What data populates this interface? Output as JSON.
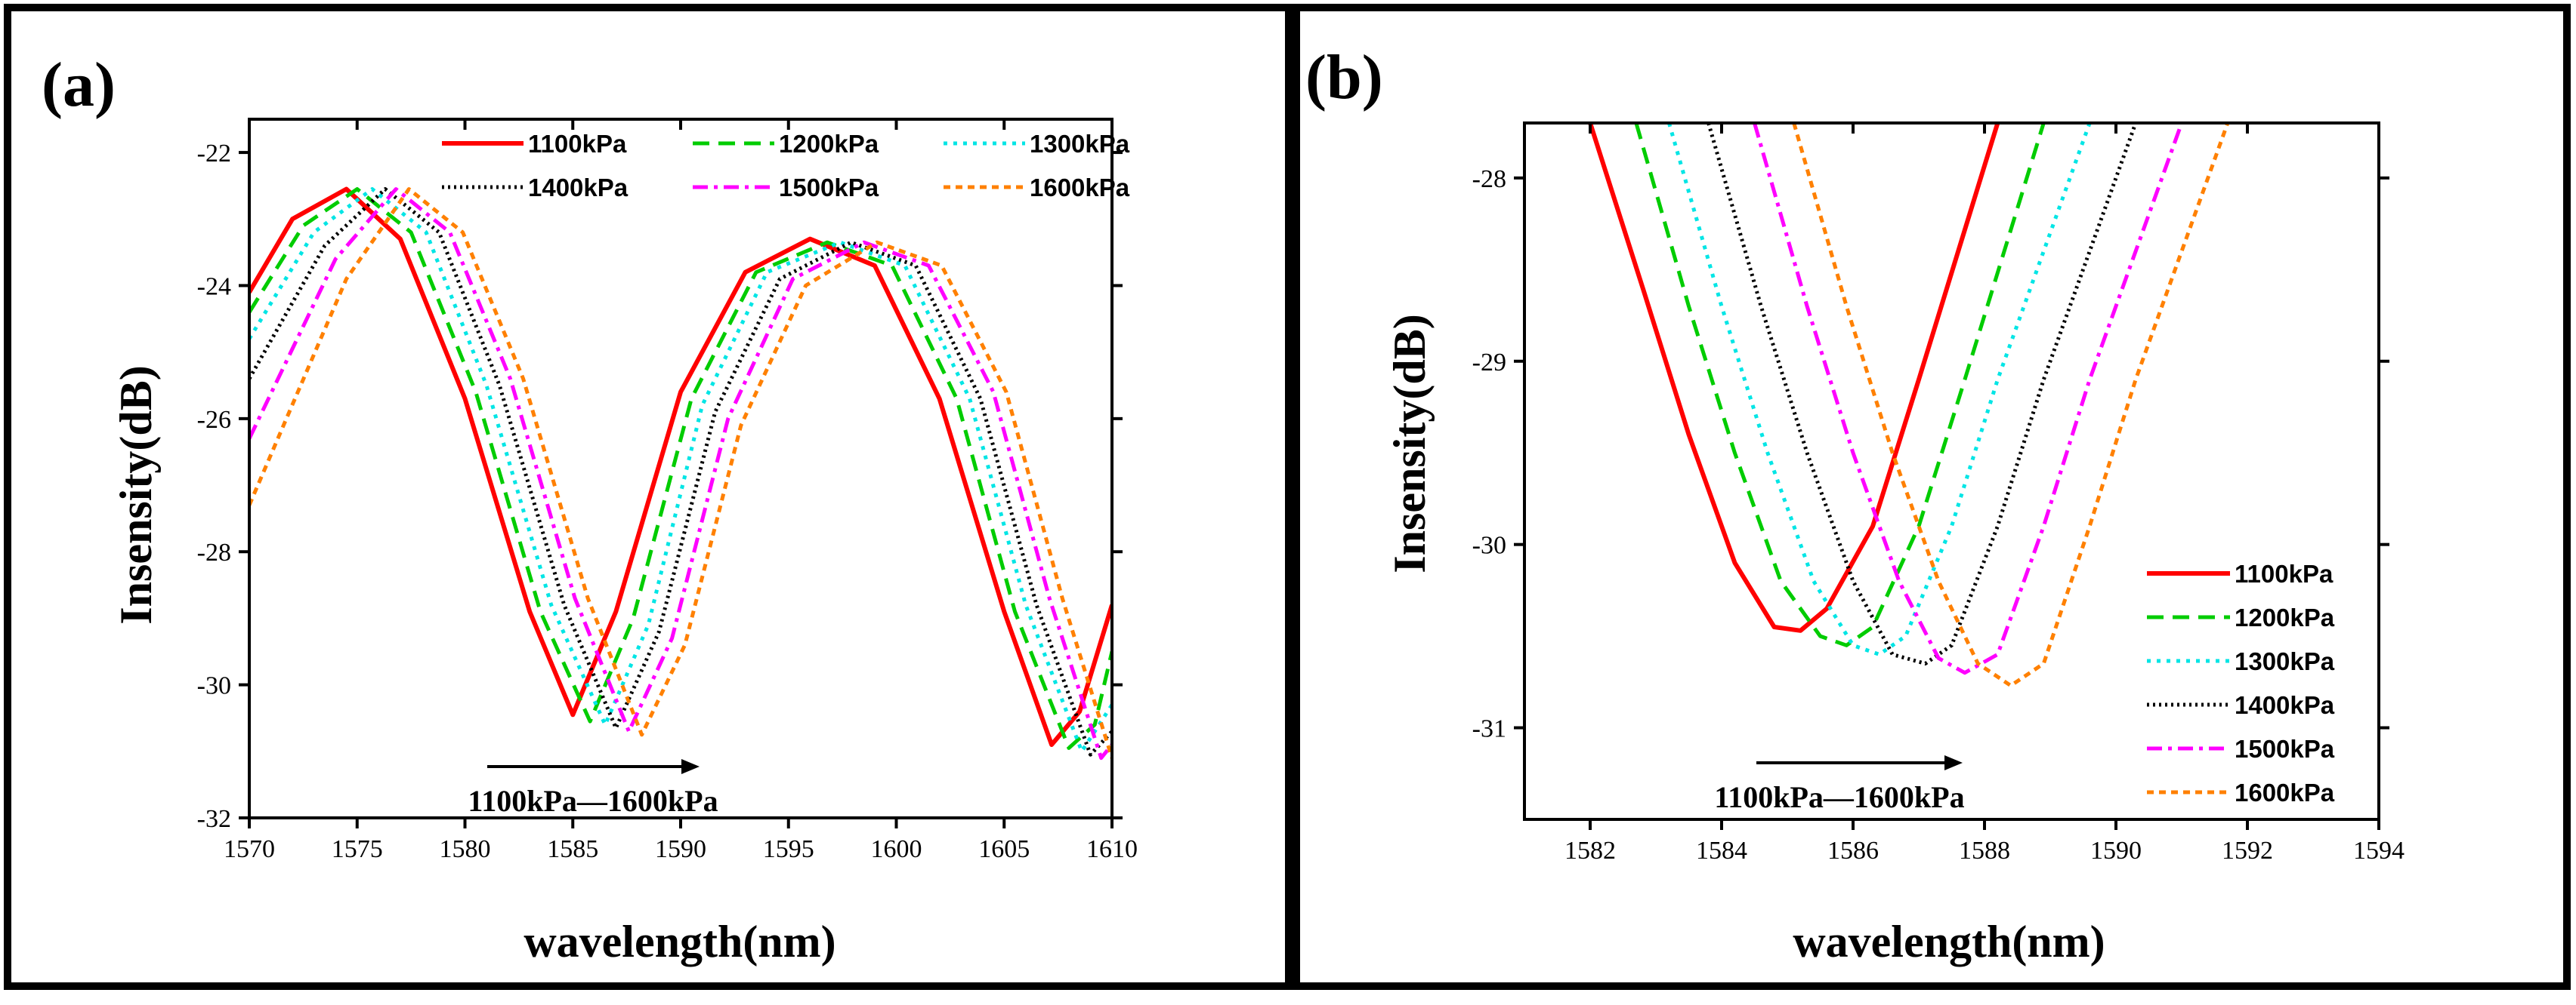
{
  "chart_data": [
    {
      "type": "line",
      "panel_label": "(a)",
      "xlabel": "wavelength(nm)",
      "ylabel": "Insensity(dB)",
      "xlim": [
        1570,
        1610
      ],
      "ylim": [
        -32,
        -21.5
      ],
      "xticks": [
        1570,
        1575,
        1580,
        1585,
        1590,
        1595,
        1600,
        1605,
        1610
      ],
      "yticks": [
        -32,
        -30,
        -28,
        -26,
        -24,
        -22
      ],
      "annotation": "1100kPa—1600kPa",
      "legend_position": "top",
      "series": [
        {
          "name": "1100kPa",
          "color": "#ff0000",
          "style": "solid",
          "x": [
            1570,
            1572,
            1574.5,
            1577,
            1580,
            1583,
            1585,
            1587,
            1590,
            1593,
            1596,
            1599,
            1602,
            1605,
            1607.2,
            1608.5,
            1610
          ],
          "y": [
            -24.1,
            -23.0,
            -22.55,
            -23.3,
            -25.7,
            -28.9,
            -30.45,
            -28.9,
            -25.6,
            -23.8,
            -23.3,
            -23.7,
            -25.7,
            -28.9,
            -30.9,
            -30.4,
            -28.8
          ]
        },
        {
          "name": "1200kPa",
          "color": "#00cc00",
          "style": "dash",
          "x": [
            1570,
            1572.5,
            1575,
            1577.5,
            1580.5,
            1583.5,
            1585.8,
            1587.8,
            1590.5,
            1593.5,
            1596.8,
            1599.8,
            1602.8,
            1605.5,
            1608,
            1609.2,
            1610
          ],
          "y": [
            -24.4,
            -23.1,
            -22.55,
            -23.2,
            -25.6,
            -28.9,
            -30.55,
            -29.0,
            -25.7,
            -23.8,
            -23.35,
            -23.7,
            -25.7,
            -28.9,
            -30.95,
            -30.6,
            -29.5
          ]
        },
        {
          "name": "1300kPa",
          "color": "#00e5e5",
          "style": "dot",
          "x": [
            1570,
            1573,
            1575.7,
            1578.2,
            1581,
            1584,
            1586.5,
            1588.5,
            1591,
            1594,
            1597.4,
            1600.4,
            1603.4,
            1606,
            1608.6,
            1610
          ],
          "y": [
            -24.8,
            -23.2,
            -22.55,
            -23.2,
            -25.5,
            -28.8,
            -30.6,
            -29.1,
            -25.8,
            -23.8,
            -23.35,
            -23.7,
            -25.7,
            -28.8,
            -31.0,
            -30.3
          ]
        },
        {
          "name": "1400kPa",
          "color": "#000000",
          "style": "dense-dot",
          "x": [
            1570,
            1573.5,
            1576.3,
            1578.8,
            1581.6,
            1584.6,
            1587,
            1589,
            1591.6,
            1594.6,
            1597.9,
            1600.9,
            1603.9,
            1606.5,
            1609,
            1610
          ],
          "y": [
            -25.4,
            -23.4,
            -22.55,
            -23.2,
            -25.5,
            -28.8,
            -30.65,
            -29.2,
            -25.9,
            -23.9,
            -23.35,
            -23.7,
            -25.7,
            -28.8,
            -31.05,
            -30.7
          ]
        },
        {
          "name": "1500kPa",
          "color": "#ff00ff",
          "style": "dash-dot",
          "x": [
            1570,
            1574,
            1576.8,
            1579.3,
            1582.1,
            1585.1,
            1587.6,
            1589.6,
            1592.2,
            1595.2,
            1598.5,
            1601.5,
            1604.5,
            1607.1,
            1609.5,
            1610
          ],
          "y": [
            -26.3,
            -23.6,
            -22.55,
            -23.2,
            -25.4,
            -28.7,
            -30.7,
            -29.3,
            -26.0,
            -23.9,
            -23.35,
            -23.7,
            -25.6,
            -28.7,
            -31.1,
            -30.9
          ]
        },
        {
          "name": "1600kPa",
          "color": "#ff8000",
          "style": "short-dash",
          "x": [
            1570,
            1574.5,
            1577.4,
            1579.9,
            1582.7,
            1585.7,
            1588.2,
            1590.2,
            1592.8,
            1595.8,
            1599.1,
            1602.1,
            1605.1,
            1607.7,
            1610
          ],
          "y": [
            -27.3,
            -23.9,
            -22.55,
            -23.2,
            -25.4,
            -28.7,
            -30.75,
            -29.4,
            -26.1,
            -24.0,
            -23.35,
            -23.7,
            -25.6,
            -28.7,
            -31.1
          ]
        }
      ]
    },
    {
      "type": "line",
      "panel_label": "(b)",
      "xlabel": "wavelength(nm)",
      "ylabel": "Insensity(dB)",
      "xlim": [
        1581,
        1594
      ],
      "ylim": [
        -31.5,
        -27.7
      ],
      "xticks": [
        1582,
        1584,
        1586,
        1588,
        1590,
        1592,
        1594
      ],
      "yticks": [
        -31,
        -30,
        -29,
        -28
      ],
      "annotation": "1100kPa—1600kPa",
      "legend_position": "bottom-right",
      "series": [
        {
          "name": "1100kPa",
          "color": "#ff0000",
          "style": "solid",
          "x": [
            1582.0,
            1582.8,
            1583.5,
            1584.2,
            1584.8,
            1585.2,
            1585.6,
            1586.3,
            1587.0,
            1587.6,
            1588.2
          ],
          "y": [
            -27.7,
            -28.6,
            -29.4,
            -30.1,
            -30.45,
            -30.47,
            -30.35,
            -29.9,
            -29.1,
            -28.4,
            -27.7
          ]
        },
        {
          "name": "1200kPa",
          "color": "#00cc00",
          "style": "dash",
          "x": [
            1582.7,
            1583.5,
            1584.2,
            1584.9,
            1585.5,
            1585.9,
            1586.3,
            1587.0,
            1587.7,
            1588.3,
            1588.9
          ],
          "y": [
            -27.7,
            -28.7,
            -29.5,
            -30.2,
            -30.5,
            -30.55,
            -30.45,
            -29.9,
            -29.1,
            -28.4,
            -27.7
          ]
        },
        {
          "name": "1300kPa",
          "color": "#00e5e5",
          "style": "dot",
          "x": [
            1583.2,
            1584.0,
            1584.7,
            1585.4,
            1586.0,
            1586.4,
            1586.8,
            1587.5,
            1588.2,
            1588.9,
            1589.6
          ],
          "y": [
            -27.7,
            -28.7,
            -29.5,
            -30.2,
            -30.55,
            -30.6,
            -30.5,
            -29.9,
            -29.1,
            -28.4,
            -27.7
          ]
        },
        {
          "name": "1400kPa",
          "color": "#000000",
          "style": "dense-dot",
          "x": [
            1583.8,
            1584.6,
            1585.3,
            1586.0,
            1586.6,
            1587.1,
            1587.5,
            1588.2,
            1588.9,
            1589.6,
            1590.3
          ],
          "y": [
            -27.7,
            -28.7,
            -29.5,
            -30.2,
            -30.6,
            -30.65,
            -30.55,
            -29.9,
            -29.1,
            -28.4,
            -27.7
          ]
        },
        {
          "name": "1500kPa",
          "color": "#ff00ff",
          "style": "dash-dot",
          "x": [
            1584.5,
            1585.3,
            1586.0,
            1586.7,
            1587.3,
            1587.7,
            1588.2,
            1588.9,
            1589.6,
            1590.3,
            1591.0
          ],
          "y": [
            -27.7,
            -28.7,
            -29.5,
            -30.2,
            -30.62,
            -30.7,
            -30.6,
            -29.9,
            -29.1,
            -28.4,
            -27.7
          ]
        },
        {
          "name": "1600kPa",
          "color": "#ff8000",
          "style": "short-dash",
          "x": [
            1585.1,
            1585.9,
            1586.6,
            1587.3,
            1587.9,
            1588.4,
            1588.9,
            1589.6,
            1590.3,
            1591.0,
            1591.7
          ],
          "y": [
            -27.7,
            -28.7,
            -29.5,
            -30.2,
            -30.65,
            -30.77,
            -30.65,
            -29.9,
            -29.1,
            -28.4,
            -27.7
          ]
        }
      ]
    }
  ]
}
